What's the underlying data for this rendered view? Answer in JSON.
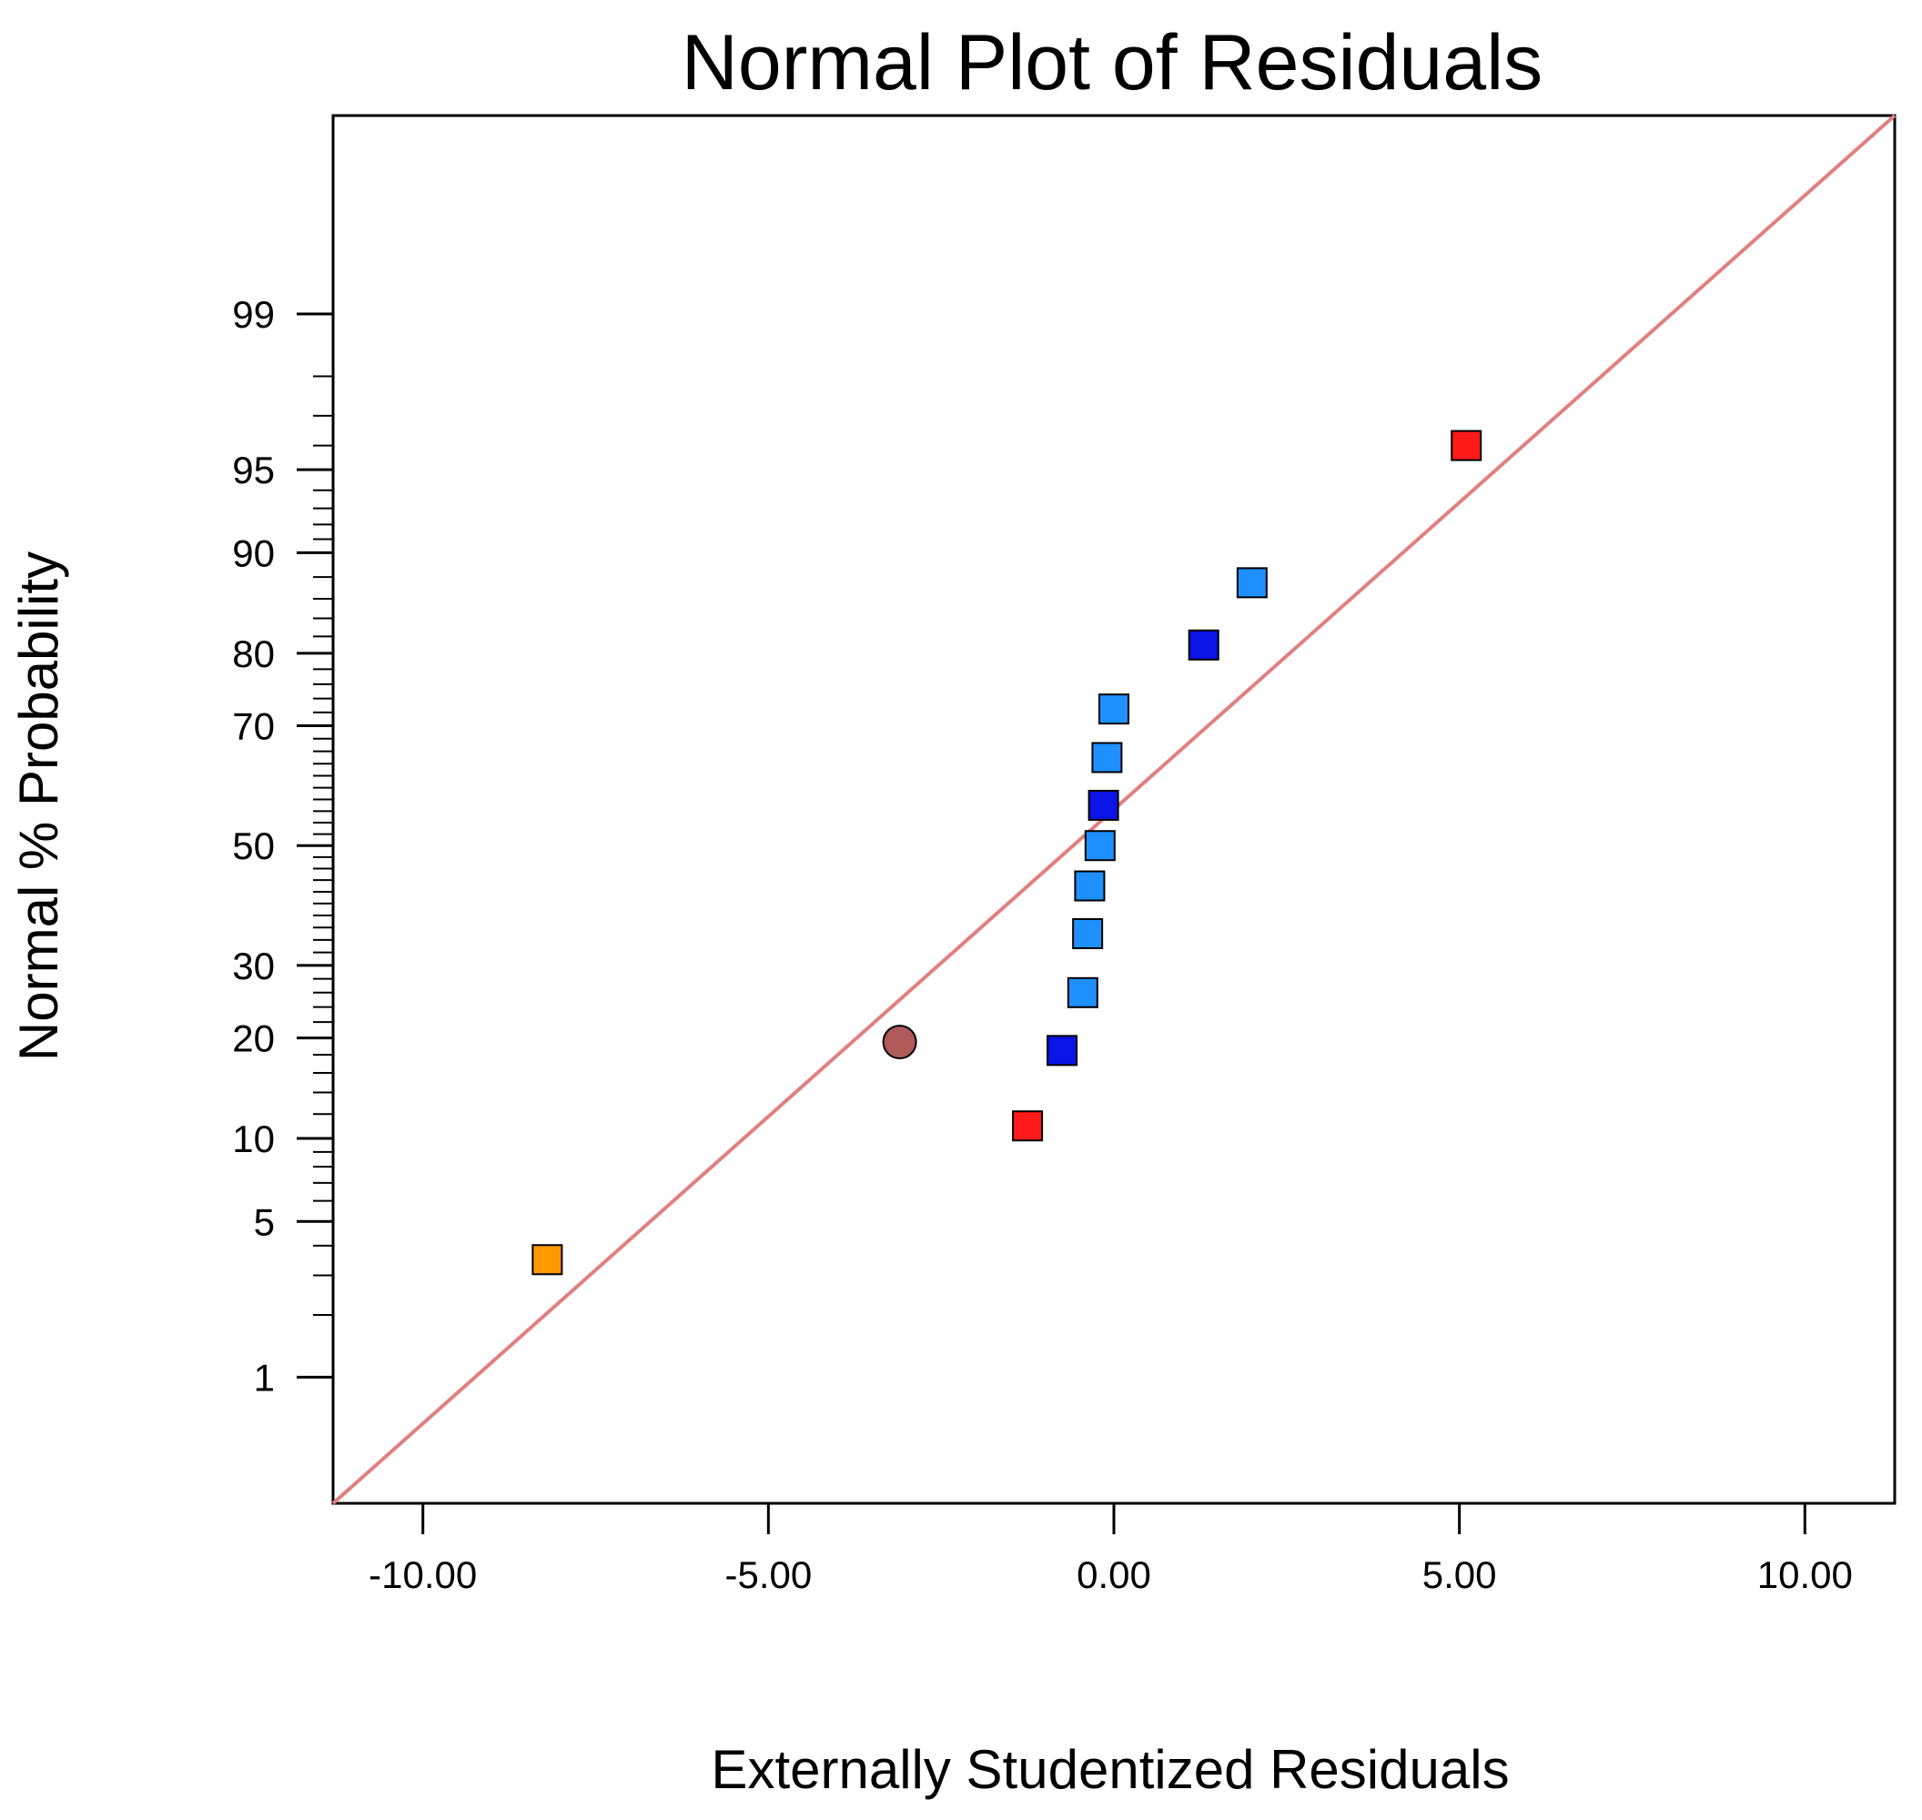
{
  "chart_data": {
    "type": "scatter",
    "title": "Normal Plot of Residuals",
    "xlabel": "Externally Studentized Residuals",
    "ylabel": "Normal % Probability",
    "xlim": [
      -11.3,
      11.3
    ],
    "ylim_probability": [
      0.2,
      99.93
    ],
    "grid": false,
    "x_ticks": [
      {
        "value": -10,
        "label": "-10.00"
      },
      {
        "value": -5,
        "label": "-5.00"
      },
      {
        "value": 0,
        "label": "0.00"
      },
      {
        "value": 5,
        "label": "5.00"
      },
      {
        "value": 10,
        "label": "10.00"
      }
    ],
    "y_ticks": [
      {
        "value": 1,
        "label": "1"
      },
      {
        "value": 5,
        "label": "5"
      },
      {
        "value": 10,
        "label": "10"
      },
      {
        "value": 20,
        "label": "20"
      },
      {
        "value": 30,
        "label": "30"
      },
      {
        "value": 50,
        "label": "50"
      },
      {
        "value": 70,
        "label": "70"
      },
      {
        "value": 80,
        "label": "80"
      },
      {
        "value": 90,
        "label": "90"
      },
      {
        "value": 95,
        "label": "95"
      },
      {
        "value": 99,
        "label": "99"
      }
    ],
    "y_minor_ticks": [
      2,
      3,
      4,
      6,
      7,
      8,
      9,
      12,
      14,
      16,
      18,
      22,
      24,
      26,
      28,
      32,
      34,
      36,
      38,
      40,
      42,
      44,
      46,
      48,
      52,
      54,
      56,
      58,
      60,
      62,
      64,
      66,
      68,
      72,
      74,
      76,
      78,
      82,
      84,
      86,
      88,
      91,
      92,
      93,
      94,
      96,
      97,
      98
    ],
    "reference_line": {
      "points": [
        {
          "x": -11.3,
          "p": 0.2
        },
        {
          "x": 11.3,
          "p": 99.93
        }
      ],
      "color": "#e08080"
    },
    "points": [
      {
        "x": -8.2,
        "p": 3.5,
        "shape": "square",
        "color": "#ff9900"
      },
      {
        "x": -3.1,
        "p": 19.5,
        "shape": "circle",
        "color": "#b05a5a"
      },
      {
        "x": -1.25,
        "p": 11.0,
        "shape": "square",
        "color": "#ff1a1a"
      },
      {
        "x": -0.75,
        "p": 18.5,
        "shape": "square",
        "color": "#0a14e6"
      },
      {
        "x": -0.45,
        "p": 26.0,
        "shape": "square",
        "color": "#1e90ff"
      },
      {
        "x": -0.38,
        "p": 35.0,
        "shape": "square",
        "color": "#1e90ff"
      },
      {
        "x": -0.35,
        "p": 43.0,
        "shape": "square",
        "color": "#1e90ff"
      },
      {
        "x": -0.2,
        "p": 50.0,
        "shape": "square",
        "color": "#1e90ff"
      },
      {
        "x": -0.15,
        "p": 57.0,
        "shape": "square",
        "color": "#0a14e6"
      },
      {
        "x": -0.1,
        "p": 65.0,
        "shape": "square",
        "color": "#1e90ff"
      },
      {
        "x": 0.0,
        "p": 72.5,
        "shape": "square",
        "color": "#1e90ff"
      },
      {
        "x": 1.3,
        "p": 81.0,
        "shape": "square",
        "color": "#0a14e6"
      },
      {
        "x": 2.0,
        "p": 87.5,
        "shape": "square",
        "color": "#1e90ff"
      },
      {
        "x": 5.1,
        "p": 96.0,
        "shape": "square",
        "color": "#ff1a1a"
      }
    ]
  }
}
